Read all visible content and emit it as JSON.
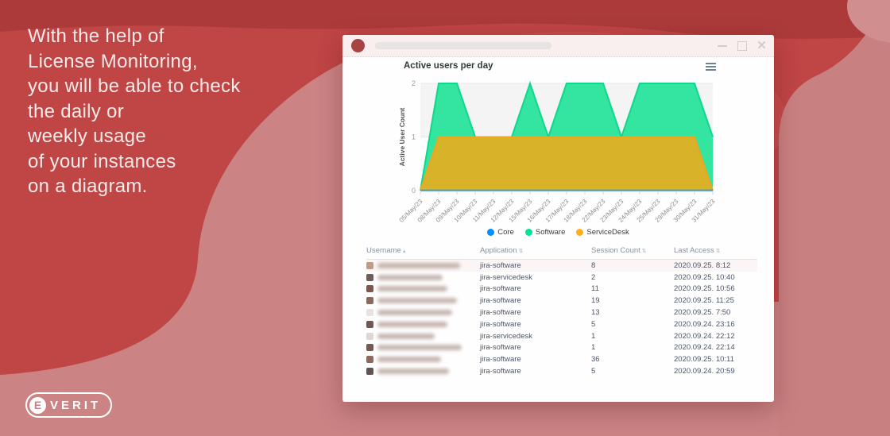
{
  "left_panel": {
    "headline_lines": [
      "With the help of",
      "License Monitoring,",
      "you will be able to check",
      "the daily or",
      "weekly usage",
      "of your instances",
      "on a diagram."
    ],
    "logo_initial": "E",
    "logo_text": "VERIT"
  },
  "colors": {
    "base_red": "#c04545",
    "dark_red_band": "#ad3a3a",
    "rose_swoosh": "#cb8384",
    "rose_blob": "#c98081",
    "window_titlebar": "#f8efee"
  },
  "chart_data": {
    "type": "area",
    "title": "Active users per day",
    "xlabel": "",
    "ylabel": "Active User Count",
    "ylim": [
      0,
      2
    ],
    "yticks": [
      0,
      1,
      2
    ],
    "grid": true,
    "legend_position": "bottom",
    "categories": [
      "05/May/23",
      "08/May/23",
      "09/May/23",
      "10/May/23",
      "11/May/23",
      "12/May/23",
      "15/May/23",
      "16/May/23",
      "17/May/23",
      "18/May/23",
      "22/May/23",
      "23/May/23",
      "24/May/23",
      "25/May/23",
      "29/May/23",
      "30/May/23",
      "31/May/23"
    ],
    "series": [
      {
        "name": "Core",
        "color": "#008ffb",
        "fill": "#2196f3",
        "stroke": "#1e9bf0",
        "values": [
          0,
          0,
          0,
          0,
          0,
          0,
          0,
          0,
          0,
          0,
          0,
          0,
          0,
          0,
          0,
          0,
          0
        ]
      },
      {
        "name": "Software",
        "color": "#00e396",
        "fill": "#2be49a",
        "stroke": "#0fd78e",
        "values": [
          0,
          2,
          2,
          1,
          1,
          1,
          2,
          1,
          2,
          2,
          2,
          1,
          2,
          2,
          2,
          2,
          1
        ]
      },
      {
        "name": "ServiceDesk",
        "color": "#feb019",
        "fill": "#dfb125",
        "stroke": "#f0a51b",
        "values": [
          0,
          1,
          1,
          1,
          1,
          1,
          1,
          1,
          1,
          1,
          1,
          1,
          1,
          1,
          1,
          1,
          0
        ]
      }
    ],
    "draw_order": [
      1,
      2,
      0
    ]
  },
  "table": {
    "columns": [
      {
        "label": "Username",
        "sort": "▴"
      },
      {
        "label": "Application",
        "sort": "⇅"
      },
      {
        "label": "Session Count",
        "sort": "⇅"
      },
      {
        "label": "Last Access",
        "sort": "⇅"
      }
    ],
    "rows": [
      {
        "application": "jira-software",
        "session_count": "8",
        "last_access": "2020.09.25. 8:12",
        "highlighted": true,
        "blur_width": 104,
        "avatar_color": "#c29a89"
      },
      {
        "application": "jira-servicedesk",
        "session_count": "2",
        "last_access": "2020.09.25. 10:40",
        "highlighted": false,
        "blur_width": 82,
        "avatar_color": "#6f5d58"
      },
      {
        "application": "jira-software",
        "session_count": "11",
        "last_access": "2020.09.25. 10:56",
        "highlighted": false,
        "blur_width": 88,
        "avatar_color": "#7d564e"
      },
      {
        "application": "jira-software",
        "session_count": "19",
        "last_access": "2020.09.25. 11:25",
        "highlighted": false,
        "blur_width": 100,
        "avatar_color": "#8a6a5e"
      },
      {
        "application": "jira-software",
        "session_count": "13",
        "last_access": "2020.09.25. 7:50",
        "highlighted": false,
        "blur_width": 94,
        "avatar_color": "#e8e3e0"
      },
      {
        "application": "jira-software",
        "session_count": "5",
        "last_access": "2020.09.24. 23:16",
        "highlighted": false,
        "blur_width": 88,
        "avatar_color": "#6e5a52"
      },
      {
        "application": "jira-servicedesk",
        "session_count": "1",
        "last_access": "2020.09.24. 22:12",
        "highlighted": false,
        "blur_width": 72,
        "avatar_color": "#ded6d2"
      },
      {
        "application": "jira-software",
        "session_count": "1",
        "last_access": "2020.09.24. 22:14",
        "highlighted": false,
        "blur_width": 106,
        "avatar_color": "#75584e"
      },
      {
        "application": "jira-software",
        "session_count": "36",
        "last_access": "2020.09.25. 10:11",
        "highlighted": false,
        "blur_width": 80,
        "avatar_color": "#8c6a5c"
      },
      {
        "application": "jira-software",
        "session_count": "5",
        "last_access": "2020.09.24. 20:59",
        "highlighted": false,
        "blur_width": 90,
        "avatar_color": "#635350"
      }
    ]
  }
}
